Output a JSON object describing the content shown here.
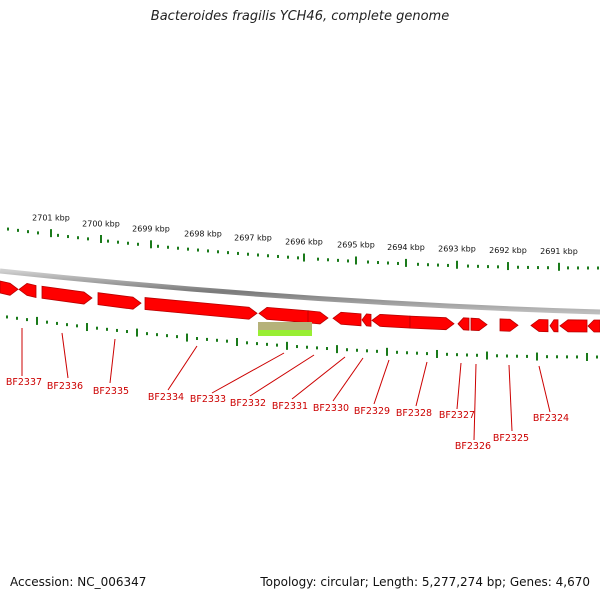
{
  "title": "Bacteroides fragilis YCH46, complete genome",
  "footer": {
    "accession": "Accession: NC_006347",
    "summary": "Topology: circular; Length: 5,277,274 bp; Genes: 4,670"
  },
  "colors": {
    "gene": "#ff0000",
    "gene_dark": "#b80000",
    "backbone": "#8a8a8a",
    "tick": "#1a7a1a",
    "label": "#cc0000",
    "highlight_top": "#b5b27a",
    "highlight_bottom": "#99ee33"
  },
  "kbp_labels": [
    "2701 kbp",
    "2700 kbp",
    "2699 kbp",
    "2698 kbp",
    "2697 kbp",
    "2696 kbp",
    "2695 kbp",
    "2694 kbp",
    "2693 kbp",
    "2692 kbp",
    "2691 kbp"
  ],
  "genes": [
    {
      "name": "BF2337"
    },
    {
      "name": "BF2336"
    },
    {
      "name": "BF2335"
    },
    {
      "name": "BF2334"
    },
    {
      "name": "BF2333"
    },
    {
      "name": "BF2332"
    },
    {
      "name": "BF2331"
    },
    {
      "name": "BF2330"
    },
    {
      "name": "BF2329"
    },
    {
      "name": "BF2328"
    },
    {
      "name": "BF2327"
    },
    {
      "name": "BF2326"
    },
    {
      "name": "BF2325"
    },
    {
      "name": "BF2324"
    }
  ]
}
